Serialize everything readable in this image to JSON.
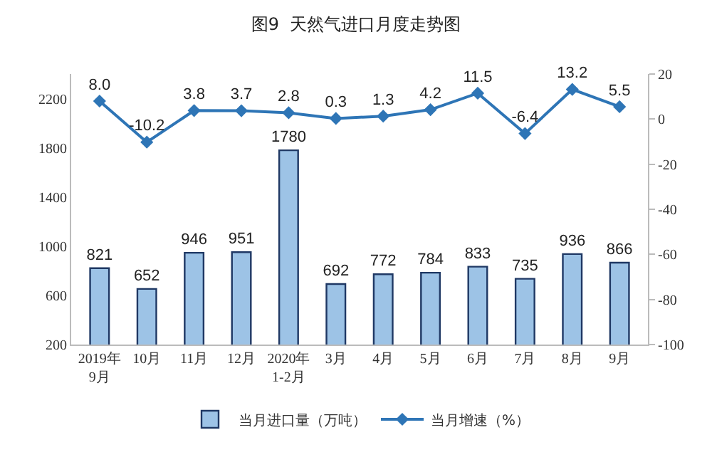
{
  "chart_data": {
    "type": "bar",
    "title": "图9  天然气进口月度走势图",
    "categories": [
      "2019年\n9月",
      "10月",
      "11月",
      "12月",
      "2020年\n1-2月",
      "3月",
      "4月",
      "5月",
      "6月",
      "7月",
      "8月",
      "9月"
    ],
    "series": [
      {
        "name": "当月进口量（万吨）",
        "color": "#9dc3e6",
        "values": [
          821,
          652,
          946,
          951,
          1780,
          692,
          772,
          784,
          833,
          735,
          936,
          866
        ]
      },
      {
        "name": "当月增速（%）",
        "type": "line",
        "axis": "y2",
        "color": "#2e75b6",
        "values": [
          8.0,
          -10.2,
          3.8,
          3.7,
          2.8,
          0.3,
          1.3,
          4.2,
          11.5,
          -6.4,
          13.2,
          5.5
        ],
        "value_labels": [
          "8.0",
          "-10.2",
          "3.8",
          "3.7",
          "2.8",
          "0.3",
          "1.3",
          "4.2",
          "11.5",
          "-6.4",
          "13.2",
          "5.5"
        ]
      }
    ],
    "ylim": [
      200,
      2400
    ],
    "yticks": [
      200,
      600,
      1000,
      1400,
      1800,
      2200
    ],
    "y2lim": [
      -100,
      20
    ],
    "y2ticks": [
      -100,
      -80,
      -60,
      -40,
      -20,
      0,
      20
    ],
    "data_labels": true,
    "legend": "bottom",
    "grid": false,
    "marker": "diamond",
    "line_style": "solid"
  }
}
